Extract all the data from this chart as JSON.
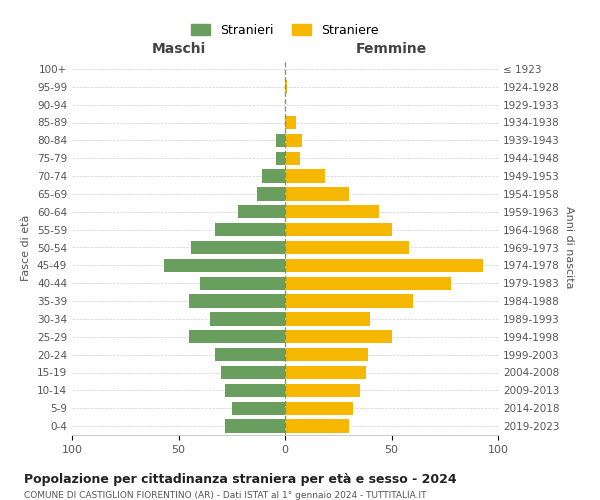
{
  "age_groups": [
    "100+",
    "95-99",
    "90-94",
    "85-89",
    "80-84",
    "75-79",
    "70-74",
    "65-69",
    "60-64",
    "55-59",
    "50-54",
    "45-49",
    "40-44",
    "35-39",
    "30-34",
    "25-29",
    "20-24",
    "15-19",
    "10-14",
    "5-9",
    "0-4"
  ],
  "birth_years": [
    "≤ 1923",
    "1924-1928",
    "1929-1933",
    "1934-1938",
    "1939-1943",
    "1944-1948",
    "1949-1953",
    "1954-1958",
    "1959-1963",
    "1964-1968",
    "1969-1973",
    "1974-1978",
    "1979-1983",
    "1984-1988",
    "1989-1993",
    "1994-1998",
    "1999-2003",
    "2004-2008",
    "2009-2013",
    "2014-2018",
    "2019-2023"
  ],
  "maschi": [
    0,
    0,
    0,
    0,
    4,
    4,
    11,
    13,
    22,
    33,
    44,
    57,
    40,
    45,
    35,
    45,
    33,
    30,
    28,
    25,
    28
  ],
  "femmine": [
    0,
    1,
    0,
    5,
    8,
    7,
    19,
    30,
    44,
    50,
    58,
    93,
    78,
    60,
    40,
    50,
    39,
    38,
    35,
    32,
    30
  ],
  "color_maschi": "#6a9e5e",
  "color_femmine": "#f5b700",
  "title": "Popolazione per cittadinanza straniera per età e sesso - 2024",
  "subtitle": "COMUNE DI CASTIGLION FIORENTINO (AR) - Dati ISTAT al 1° gennaio 2024 - TUTTITALIA.IT",
  "legend_maschi": "Stranieri",
  "legend_femmine": "Straniere",
  "xlabel_maschi": "Maschi",
  "xlabel_femmine": "Femmine",
  "ylabel_left": "Fasce di età",
  "ylabel_right": "Anni di nascita",
  "xlim": 100,
  "bg_color": "#ffffff",
  "grid_color": "#cccccc"
}
